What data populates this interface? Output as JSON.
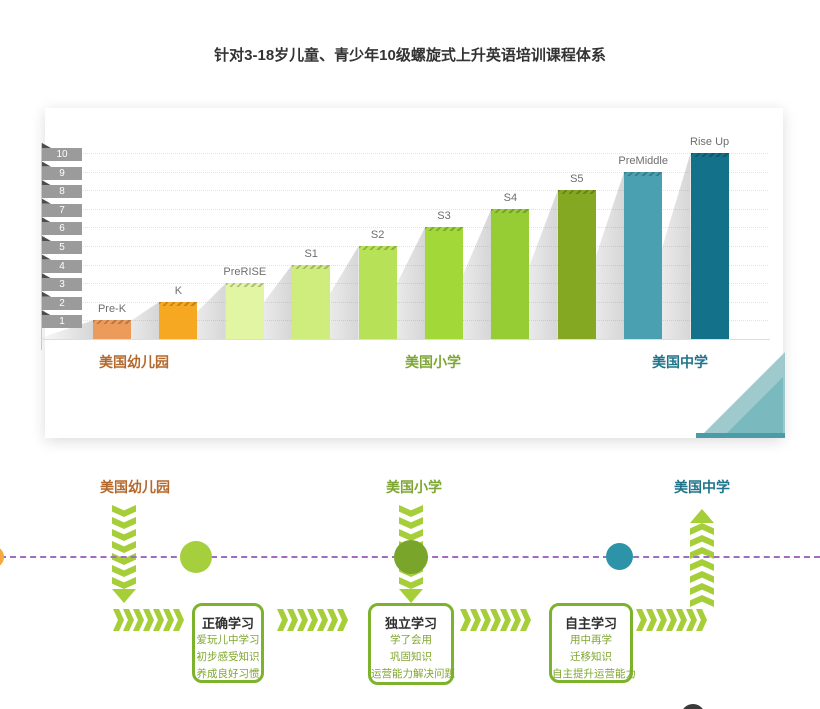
{
  "title": "针对3-18岁儿童、青少年10级螺旋式上升英语培训课程体系",
  "chart_data": {
    "type": "bar",
    "categories": [
      "Pre-K",
      "K",
      "PreRISE",
      "S1",
      "S2",
      "S3",
      "S4",
      "S5",
      "PreMiddle",
      "Rise Up"
    ],
    "values": [
      1,
      2,
      3,
      4,
      5,
      6,
      7,
      8,
      9,
      10
    ],
    "bar_colors": [
      "#EC9B5B",
      "#F7A823",
      "#E2F5A3",
      "#CEED7D",
      "#B7E156",
      "#A2D838",
      "#96CC34",
      "#85A823",
      "#4A9FB1",
      "#137189"
    ],
    "y_ticks": [
      "1",
      "2",
      "3",
      "4",
      "5",
      "6",
      "7",
      "8",
      "9",
      "10"
    ],
    "ylim": [
      0,
      10
    ],
    "grid": true,
    "xlabel": "",
    "ylabel": "",
    "stage_groups": [
      {
        "label": "美国幼儿园",
        "color": "#b5682c"
      },
      {
        "label": "美国小学",
        "color": "#7ea634"
      },
      {
        "label": "美国中学",
        "color": "#20748a"
      }
    ],
    "corner_colors": {
      "light": "#9fcacd",
      "mid": "#7ab9bd",
      "strip": "#4c9ca8"
    }
  },
  "flow": {
    "chevron_color": "#a5ce39",
    "timeline_color": "#a06cc0",
    "stage_labels": [
      {
        "label": "美国幼儿园",
        "color": "#b5682c"
      },
      {
        "label": "美国小学",
        "color": "#7ea634"
      },
      {
        "label": "美国中学",
        "color": "#20748a"
      }
    ],
    "columns": [
      {
        "name": "kindergarten-arrow",
        "dir": "down"
      },
      {
        "name": "elementary-arrow",
        "dir": "down"
      },
      {
        "name": "middle-school-arrow",
        "dir": "up"
      }
    ],
    "dots": [
      {
        "name": "orange-dot",
        "color": "#f5a93e"
      },
      {
        "name": "light-green-dot",
        "color": "#a5cf3d"
      },
      {
        "name": "dark-green-dot",
        "color": "#79a62a"
      },
      {
        "name": "teal-dot",
        "color": "#2d93a9"
      }
    ],
    "boxes": [
      {
        "title": "正确学习",
        "lines": [
          "爱玩儿中学习",
          "初步感受知识",
          "养成良好习惯"
        ]
      },
      {
        "title": "独立学习",
        "lines": [
          "学了会用",
          "巩固知识",
          "运营能力解决问题"
        ]
      },
      {
        "title": "自主学习",
        "lines": [
          "用中再学",
          "迁移知识",
          "自主提升运营能力"
        ]
      }
    ]
  }
}
